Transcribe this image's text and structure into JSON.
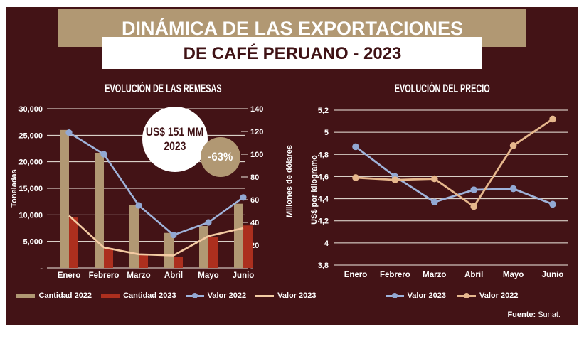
{
  "header": {
    "band_title": "DINÁMICA DE LAS EXPORTACIONES",
    "box_title": "DE CAFÉ PERUANO - 2023"
  },
  "annotations": {
    "bubble_line1": "US$ 151 MM",
    "bubble_line2": "2023",
    "badge": "-63%"
  },
  "footer": {
    "source_label": "Fuente:",
    "source_value": "Sunat."
  },
  "colors": {
    "panel_bg": "#431316",
    "tan": "#B19873",
    "red": "#AC2F1E",
    "blue": "#9FB3DA",
    "blue_dot": "#92A8D3",
    "peach": "#F4CBA3",
    "peach_dark": "#E6B78D",
    "grid": "#F0EBE1",
    "text_white": "#FFFFFF",
    "text_maroon": "#3F1215"
  },
  "chart_data": [
    {
      "type": "bar",
      "title": "EVOLUCIÓN DE LAS REMESAS",
      "categories": [
        "Enero",
        "Febrero",
        "Marzo",
        "Abril",
        "Mayo",
        "Junio"
      ],
      "left_axis": {
        "label": "Toneladas",
        "ticks": [
          "30,000",
          "25,000",
          "20,000",
          "15,000",
          "10,000",
          "5,000",
          "-"
        ],
        "min": 0,
        "max": 30000,
        "step": 5000
      },
      "right_axis": {
        "label": "Millones de dólares",
        "ticks": [
          "140",
          "120",
          "100",
          "80",
          "60",
          "40",
          "20",
          "-"
        ],
        "min": 0,
        "max": 140,
        "step": 20
      },
      "grid": true,
      "series": [
        {
          "name": "Cantidad 2022",
          "type": "bar",
          "axis": "left",
          "color_key": "tan",
          "values": [
            26000,
            21700,
            11800,
            6600,
            7900,
            12100
          ]
        },
        {
          "name": "Cantidad 2023",
          "type": "bar",
          "axis": "left",
          "color_key": "red",
          "values": [
            9500,
            3750,
            2400,
            2100,
            5900,
            8000
          ]
        },
        {
          "name": "Valor 2022",
          "type": "line",
          "axis": "right",
          "color_key": "blue",
          "marker": true,
          "values": [
            119,
            100,
            55,
            29,
            40,
            62
          ]
        },
        {
          "name": "Valor 2023",
          "type": "line",
          "axis": "right",
          "color_key": "peach",
          "marker": false,
          "values": [
            46,
            18,
            12,
            11,
            28,
            35
          ]
        }
      ]
    },
    {
      "type": "line",
      "title": "EVOLUCIÓN DEL PRECIO",
      "categories": [
        "Enero",
        "Febrero",
        "Marzo",
        "Abril",
        "Mayo",
        "Junio"
      ],
      "y_axis": {
        "label": "US$ por kilogramo",
        "ticks": [
          "5,2",
          "5",
          "4,8",
          "4,6",
          "4,4",
          "4,2",
          "4",
          "3,8"
        ],
        "min": 3.8,
        "max": 5.2,
        "step": 0.2
      },
      "grid": true,
      "series": [
        {
          "name": "Valor 2023",
          "type": "line",
          "color_key": "blue",
          "marker": true,
          "values": [
            4.87,
            4.6,
            4.37,
            4.48,
            4.49,
            4.35
          ]
        },
        {
          "name": "Valor 2022",
          "type": "line",
          "color_key": "peach_dark",
          "marker": true,
          "values": [
            4.59,
            4.57,
            4.58,
            4.33,
            4.88,
            5.12
          ]
        }
      ]
    }
  ]
}
